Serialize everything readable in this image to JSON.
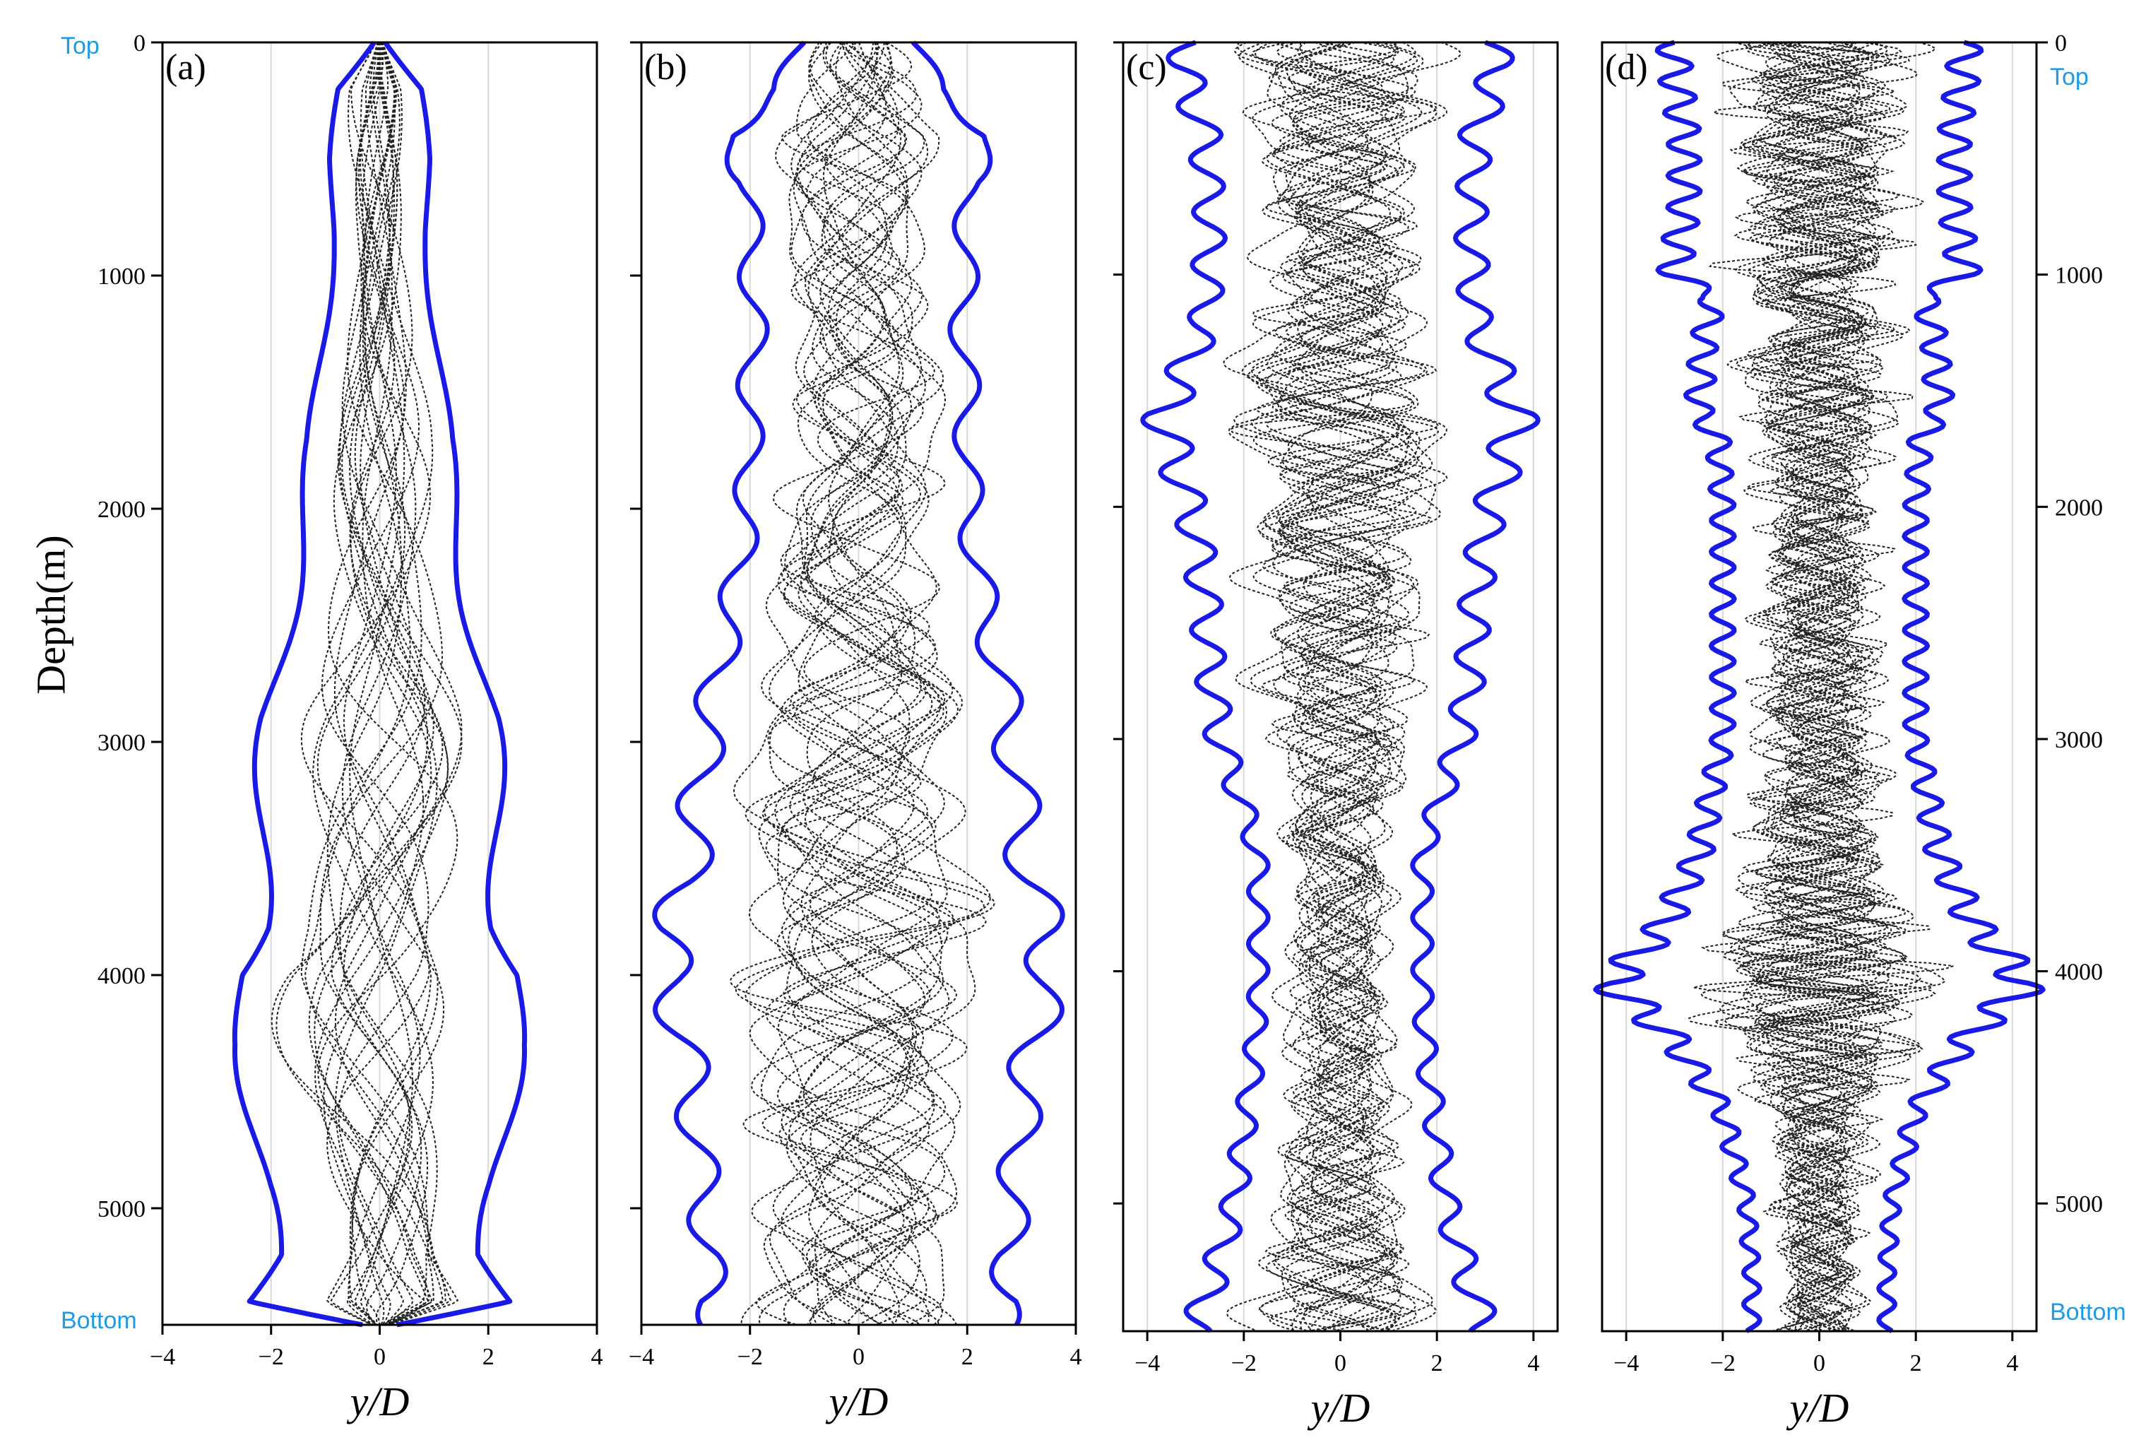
{
  "figure": {
    "ylabel": "Depth(m)",
    "xlabel": "y/D",
    "top_label": "Top",
    "bottom_label": "Bottom",
    "colors": {
      "envelope": "#1a1ae6",
      "trace": "#222222",
      "marker_text": "#1e9be6",
      "grid": "#d9d9d9",
      "axis": "#000000"
    }
  },
  "chart_data": [
    {
      "type": "line",
      "panel_label": "(a)",
      "xlabel": "y/D",
      "ylabel": "Depth(m)",
      "xlim": [
        -4,
        4
      ],
      "ylim": [
        5500,
        0
      ],
      "x_ticks": [
        -4,
        -2,
        0,
        2,
        4
      ],
      "y_ticks": [
        0,
        1000,
        2000,
        3000,
        4000,
        5000
      ],
      "y_tick_side": "left",
      "grid": "vertical",
      "series": [
        {
          "role": "envelope",
          "depth": [
            0,
            200,
            500,
            800,
            1100,
            1400,
            1700,
            2000,
            2300,
            2600,
            2900,
            3200,
            3500,
            3800,
            4000,
            4300,
            4600,
            4900,
            5200,
            5400,
            5500
          ],
          "amplitude": [
            0.1,
            0.7,
            0.85,
            0.9,
            1.0,
            1.1,
            1.2,
            1.4,
            1.6,
            1.8,
            2.0,
            2.1,
            2.2,
            2.3,
            2.6,
            2.4,
            2.3,
            2.2,
            2.0,
            2.4,
            0.3
          ]
        },
        {
          "role": "traces",
          "count": 24,
          "wavelength_m": [
            1500,
            3200
          ],
          "amplitude_scale": 0.75
        }
      ]
    },
    {
      "type": "line",
      "panel_label": "(b)",
      "xlabel": "y/D",
      "xlim": [
        -4,
        4
      ],
      "ylim": [
        5500,
        0
      ],
      "x_ticks": [
        -4,
        -2,
        0,
        2,
        4
      ],
      "y_ticks": [
        0,
        1000,
        2000,
        3000,
        4000,
        5000
      ],
      "y_tick_side": "left",
      "grid": "vertical",
      "series": [
        {
          "role": "envelope",
          "depth": [
            0,
            200,
            400,
            600,
            900,
            1200,
            1500,
            1800,
            2100,
            2400,
            2700,
            3000,
            3300,
            3600,
            3800,
            4000,
            4300,
            4600,
            4900,
            5200,
            5400,
            5500
          ],
          "amplitude": [
            1.0,
            1.5,
            2.5,
            2.0,
            2.0,
            1.9,
            2.0,
            2.0,
            2.1,
            2.3,
            2.6,
            2.8,
            3.0,
            3.1,
            3.5,
            3.5,
            3.2,
            3.0,
            2.9,
            2.7,
            2.9,
            2.6
          ]
        },
        {
          "role": "traces",
          "count": 24,
          "wavelength_m": [
            500,
            1600
          ],
          "amplitude_scale": 0.8
        }
      ]
    },
    {
      "type": "line",
      "panel_label": "(c)",
      "xlabel": "y/D",
      "xlim": [
        -4.5,
        4.5
      ],
      "ylim": [
        5550,
        0
      ],
      "x_ticks": [
        -4,
        -2,
        0,
        2,
        4
      ],
      "y_ticks": [
        0,
        1000,
        2000,
        3000,
        4000,
        5000
      ],
      "y_tick_side": "none",
      "grid": "vertical",
      "series": [
        {
          "role": "envelope",
          "depth": [
            0,
            100,
            400,
            800,
            1200,
            1500,
            1600,
            1800,
            2100,
            2400,
            2700,
            3000,
            3300,
            3500,
            3800,
            4100,
            4400,
            4700,
            5000,
            5300,
            5550
          ],
          "amplitude": [
            3.0,
            3.3,
            2.8,
            2.7,
            2.8,
            3.4,
            3.7,
            3.4,
            3.0,
            2.8,
            2.7,
            2.5,
            2.0,
            1.7,
            1.7,
            1.7,
            1.8,
            2.0,
            2.2,
            2.6,
            3.0
          ]
        },
        {
          "role": "traces",
          "count": 22,
          "wavelength_m": [
            250,
            700
          ],
          "amplitude_scale": 0.75
        }
      ]
    },
    {
      "type": "line",
      "panel_label": "(d)",
      "xlabel": "y/D",
      "xlim": [
        -4.5,
        4.5
      ],
      "ylim": [
        5550,
        0
      ],
      "x_ticks": [
        -4,
        -2,
        0,
        2,
        4
      ],
      "y_ticks": [
        0,
        1000,
        2000,
        3000,
        4000,
        5000
      ],
      "y_tick_side": "right",
      "grid": "vertical",
      "series": [
        {
          "role": "envelope",
          "depth": [
            0,
            100,
            400,
            700,
            1000,
            1100,
            1300,
            1600,
            1700,
            2000,
            2500,
            3000,
            3500,
            3800,
            4050,
            4300,
            4600,
            5000,
            5300,
            5550
          ],
          "amplitude": [
            3.0,
            3.0,
            2.8,
            2.8,
            3.0,
            2.2,
            2.4,
            2.5,
            2.1,
            2.0,
            2.0,
            2.0,
            2.5,
            3.2,
            4.3,
            3.0,
            2.0,
            1.5,
            1.4,
            1.4
          ]
        },
        {
          "role": "traces",
          "count": 22,
          "wavelength_m": [
            150,
            450
          ],
          "amplitude_scale": 0.75
        }
      ]
    }
  ]
}
